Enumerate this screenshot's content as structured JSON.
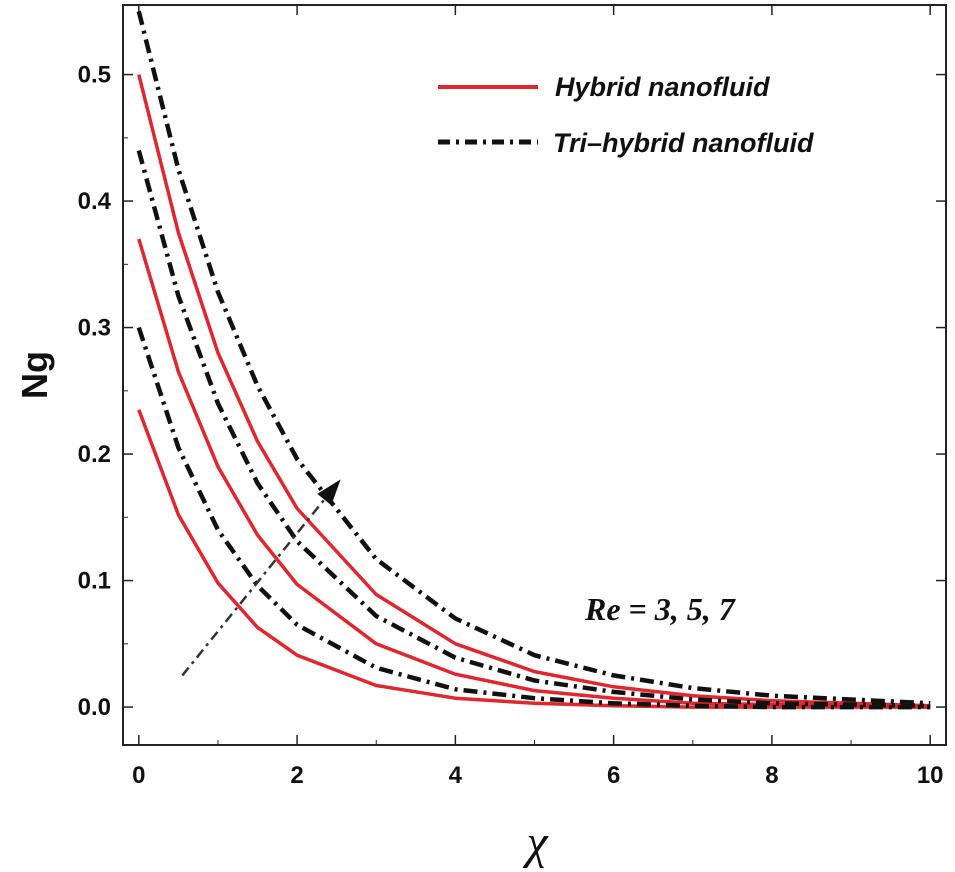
{
  "chart_data": {
    "type": "line",
    "xlabel": "χ",
    "ylabel": "Ng",
    "xlim": [
      -0.2,
      10.2
    ],
    "ylim": [
      -0.03,
      0.555
    ],
    "xticks": [
      0,
      2,
      4,
      6,
      8,
      10
    ],
    "xtick_labels": [
      "0",
      "2",
      "4",
      "6",
      "8",
      "10"
    ],
    "yticks": [
      0.0,
      0.1,
      0.2,
      0.3,
      0.4,
      0.5
    ],
    "ytick_labels": [
      "0.0",
      "0.1",
      "0.2",
      "0.3",
      "0.4",
      "0.5"
    ],
    "legend_position": "top-right",
    "series": [
      {
        "name": "Hybrid nanofluid",
        "case": "Re = 3",
        "style": "solid",
        "color": "#e0262e",
        "x": [
          0,
          0.5,
          1,
          1.5,
          2,
          3,
          4,
          5,
          6,
          7,
          8,
          10
        ],
        "y": [
          0.235,
          0.152,
          0.098,
          0.063,
          0.041,
          0.017,
          0.007,
          0.003,
          0.001,
          0.0,
          0.0,
          0.0
        ]
      },
      {
        "name": "Hybrid nanofluid",
        "case": "Re = 5",
        "style": "solid",
        "color": "#e0262e",
        "x": [
          0,
          0.5,
          1,
          1.5,
          2,
          3,
          4,
          5,
          6,
          7,
          8,
          10
        ],
        "y": [
          0.37,
          0.265,
          0.19,
          0.136,
          0.097,
          0.05,
          0.026,
          0.013,
          0.007,
          0.003,
          0.002,
          0.0
        ]
      },
      {
        "name": "Hybrid nanofluid",
        "case": "Re = 7",
        "style": "solid",
        "color": "#e0262e",
        "x": [
          0,
          0.5,
          1,
          1.5,
          2,
          3,
          4,
          5,
          6,
          7,
          8,
          10
        ],
        "y": [
          0.5,
          0.375,
          0.28,
          0.21,
          0.157,
          0.089,
          0.05,
          0.028,
          0.016,
          0.009,
          0.005,
          0.001
        ]
      },
      {
        "name": "Tri-hybrid nanofluid",
        "case": "Re = 3",
        "style": "dashdot",
        "color": "#111111",
        "x": [
          0,
          0.5,
          1,
          1.5,
          2,
          3,
          4,
          5,
          6,
          7,
          8,
          10
        ],
        "y": [
          0.3,
          0.205,
          0.14,
          0.096,
          0.065,
          0.031,
          0.014,
          0.007,
          0.003,
          0.001,
          0.0,
          0.0
        ]
      },
      {
        "name": "Tri-hybrid nanofluid",
        "case": "Re = 5",
        "style": "dashdot",
        "color": "#111111",
        "x": [
          0,
          0.5,
          1,
          1.5,
          2,
          3,
          4,
          5,
          6,
          7,
          8,
          10
        ],
        "y": [
          0.44,
          0.325,
          0.24,
          0.177,
          0.131,
          0.072,
          0.039,
          0.021,
          0.012,
          0.006,
          0.003,
          0.001
        ]
      },
      {
        "name": "Tri-hybrid nanofluid",
        "case": "Re = 7",
        "style": "dashdot",
        "color": "#111111",
        "x": [
          0,
          0.5,
          1,
          1.5,
          2,
          3,
          4,
          5,
          6,
          7,
          8,
          10
        ],
        "y": [
          0.55,
          0.425,
          0.328,
          0.254,
          0.196,
          0.117,
          0.07,
          0.041,
          0.025,
          0.015,
          0.009,
          0.003
        ]
      }
    ],
    "legend": [
      {
        "label": "Hybrid nanofluid",
        "style": "solid",
        "color": "#e0262e"
      },
      {
        "label": "Tri–hybrid nanofluid",
        "style": "dashdot",
        "color": "#111111"
      }
    ],
    "annotation": {
      "text": "Re = 3,  5, 7",
      "data_x": 7.5,
      "data_y": 0.075
    },
    "arrow": {
      "from": [
        0.55,
        0.025
      ],
      "to": [
        2.55,
        0.18
      ],
      "meaning": "increasing Re"
    }
  }
}
